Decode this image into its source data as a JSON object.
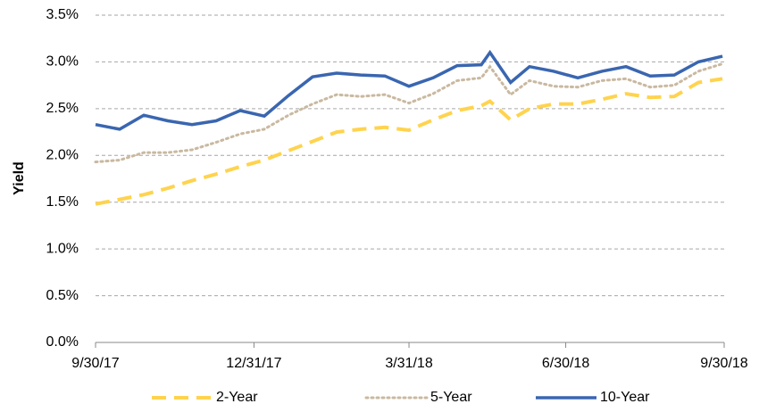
{
  "chart_data": {
    "type": "line",
    "axis_label_y": "Yield",
    "x": [
      "9/30/17",
      "10/14/17",
      "10/28/17",
      "11/11/17",
      "11/25/17",
      "12/9/17",
      "12/23/17",
      "1/6/18",
      "1/20/18",
      "2/3/18",
      "2/17/18",
      "3/3/18",
      "3/17/18",
      "3/31/18",
      "4/14/18",
      "4/28/18",
      "5/12/18",
      "5/17/18",
      "5/29/18",
      "6/9/18",
      "6/23/18",
      "7/7/18",
      "7/21/18",
      "8/4/18",
      "8/18/18",
      "9/1/18",
      "9/15/18",
      "9/29/18"
    ],
    "series": [
      {
        "name": "2-Year",
        "color": "#ffd34e",
        "dash": "dashed",
        "values": [
          1.48,
          1.53,
          1.58,
          1.65,
          1.73,
          1.8,
          1.88,
          1.95,
          2.05,
          2.15,
          2.25,
          2.28,
          2.3,
          2.27,
          2.38,
          2.48,
          2.53,
          2.58,
          2.38,
          2.5,
          2.55,
          2.55,
          2.6,
          2.66,
          2.62,
          2.63,
          2.78,
          2.82
        ]
      },
      {
        "name": "5-Year",
        "color": "#c9b9a0",
        "dash": "dotted",
        "values": [
          1.93,
          1.95,
          2.03,
          2.03,
          2.06,
          2.14,
          2.23,
          2.28,
          2.43,
          2.55,
          2.65,
          2.63,
          2.65,
          2.56,
          2.66,
          2.8,
          2.83,
          2.95,
          2.65,
          2.8,
          2.74,
          2.73,
          2.8,
          2.82,
          2.73,
          2.75,
          2.9,
          2.98
        ]
      },
      {
        "name": "10-Year",
        "color": "#3a66b0",
        "dash": "solid",
        "values": [
          2.33,
          2.28,
          2.43,
          2.37,
          2.33,
          2.37,
          2.48,
          2.42,
          2.64,
          2.84,
          2.88,
          2.86,
          2.85,
          2.74,
          2.83,
          2.96,
          2.97,
          3.1,
          2.78,
          2.95,
          2.9,
          2.83,
          2.9,
          2.95,
          2.85,
          2.86,
          3.0,
          3.06
        ]
      }
    ],
    "xlim": [
      "9/30/17",
      "9/30/18"
    ],
    "xticks": [
      "9/30/17",
      "12/31/17",
      "3/31/18",
      "6/30/18",
      "9/30/18"
    ],
    "ylim": [
      0,
      3.5
    ],
    "yticks": [
      {
        "value": 0,
        "label": "0.0%"
      },
      {
        "value": 0.5,
        "label": "0.5%"
      },
      {
        "value": 1,
        "label": "1.0%"
      },
      {
        "value": 1.5,
        "label": "1.5%"
      },
      {
        "value": 2,
        "label": "2.0%"
      },
      {
        "value": 2.5,
        "label": "2.5%"
      },
      {
        "value": 3,
        "label": "3.0%"
      },
      {
        "value": 3.5,
        "label": "3.5%"
      }
    ],
    "grid": true,
    "legend": "bottom"
  }
}
